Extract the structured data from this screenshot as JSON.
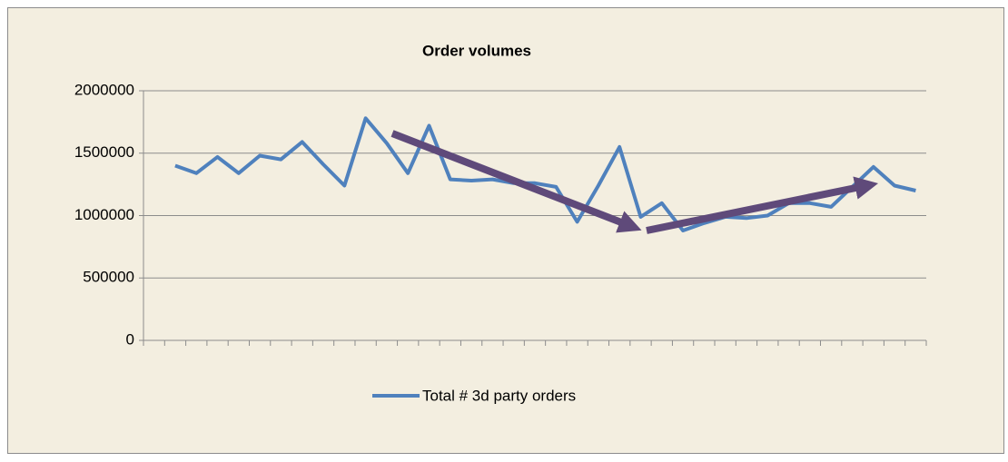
{
  "chart_data": {
    "type": "line",
    "title": "Order volumes",
    "categories": [
      null,
      null,
      null,
      null,
      null,
      null,
      null,
      null,
      null,
      null,
      null,
      null,
      null,
      null,
      null,
      null,
      null,
      null,
      null,
      null,
      null,
      null,
      null,
      null,
      null,
      null,
      null,
      null,
      null,
      null,
      null,
      null,
      null,
      null,
      null,
      null,
      null
    ],
    "series": [
      {
        "name": "Total # 3d party orders",
        "color": "#4f81bd",
        "values": [
          null,
          1400000,
          1340000,
          1470000,
          1340000,
          1480000,
          1450000,
          1590000,
          1410000,
          1240000,
          1780000,
          1580000,
          1340000,
          1720000,
          1290000,
          1280000,
          1290000,
          1260000,
          1260000,
          1230000,
          950000,
          1240000,
          1550000,
          990000,
          1100000,
          880000,
          940000,
          990000,
          980000,
          1000000,
          1100000,
          1100000,
          1070000,
          1230000,
          1390000,
          1240000,
          1200000
        ]
      }
    ],
    "ylim": [
      0,
      2000000
    ],
    "yticks": [
      0,
      500000,
      1000000,
      1500000,
      2000000
    ],
    "grid": true,
    "legend": "bottom"
  }
}
